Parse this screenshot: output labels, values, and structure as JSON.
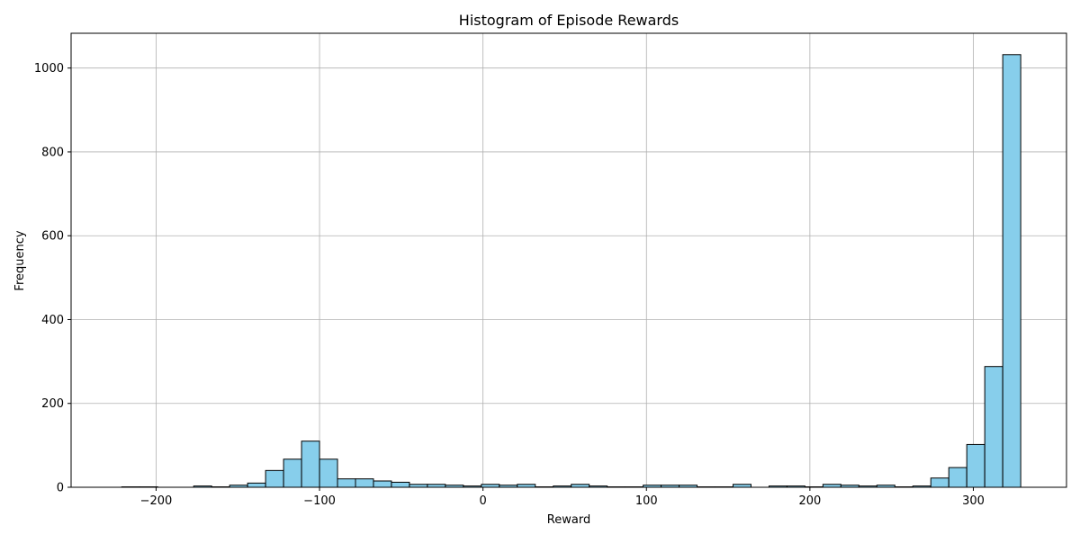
{
  "chart_data": {
    "type": "bar",
    "title": "Histogram of Episode Rewards",
    "xlabel": "Reward",
    "ylabel": "Frequency",
    "xlim": [
      -252,
      357
    ],
    "ylim": [
      0,
      1083
    ],
    "xticks": [
      -200,
      -100,
      0,
      100,
      200,
      300
    ],
    "yticks": [
      0,
      200,
      400,
      600,
      800,
      1000
    ],
    "xtick_labels": [
      "−200",
      "−100",
      "0",
      "100",
      "200",
      "300"
    ],
    "ytick_labels": [
      "0",
      "200",
      "400",
      "600",
      "800",
      "1000"
    ],
    "grid": true,
    "bar_color": "#87CEEB",
    "edge_color": "#000000",
    "bin_start": -221,
    "bin_width": 11,
    "counts": [
      1,
      1,
      0,
      0,
      3,
      1,
      5,
      10,
      40,
      67,
      110,
      67,
      20,
      20,
      15,
      12,
      7,
      7,
      5,
      3,
      7,
      5,
      7,
      1,
      3,
      7,
      3,
      1,
      1,
      5,
      5,
      5,
      1,
      1,
      7,
      0,
      3,
      3,
      1,
      7,
      5,
      3,
      5,
      1,
      3,
      22,
      47,
      102,
      288,
      1032
    ]
  }
}
